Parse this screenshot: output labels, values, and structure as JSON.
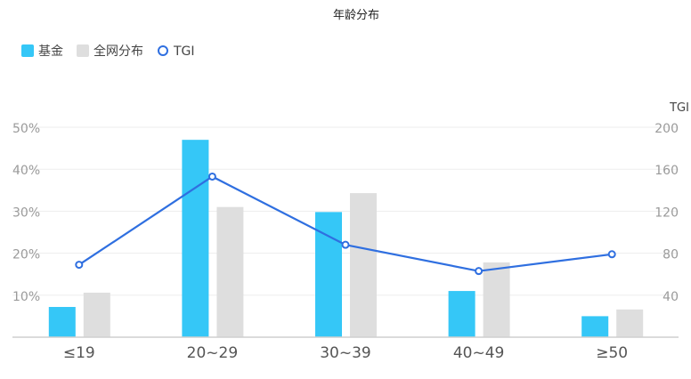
{
  "chart_data": {
    "type": "bar",
    "title": "年龄分布",
    "categories": [
      "≤19",
      "20~29",
      "30~39",
      "40~49",
      "≥50"
    ],
    "series": [
      {
        "name": "基金",
        "type": "bar",
        "axis": "left",
        "color": "#35c7f7",
        "values": [
          7.2,
          47.0,
          29.8,
          11.0,
          5.0
        ]
      },
      {
        "name": "全网分布",
        "type": "bar",
        "axis": "left",
        "color": "#dedede",
        "values": [
          10.6,
          31.0,
          34.3,
          17.8,
          6.6
        ]
      },
      {
        "name": "TGI",
        "type": "line",
        "axis": "right",
        "color": "#2f6fe0",
        "values": [
          69,
          153,
          88,
          63,
          79
        ]
      }
    ],
    "y_left": {
      "ticks": [
        "10%",
        "20%",
        "30%",
        "40%",
        "50%"
      ],
      "tick_values": [
        10,
        20,
        30,
        40,
        50
      ],
      "range": [
        0,
        50
      ]
    },
    "y_right": {
      "label": "TGI",
      "ticks": [
        "40",
        "80",
        "120",
        "160",
        "200"
      ],
      "tick_values": [
        40,
        80,
        120,
        160,
        200
      ],
      "range": [
        0,
        200
      ]
    },
    "legend_position": "top-left",
    "grid": true
  }
}
